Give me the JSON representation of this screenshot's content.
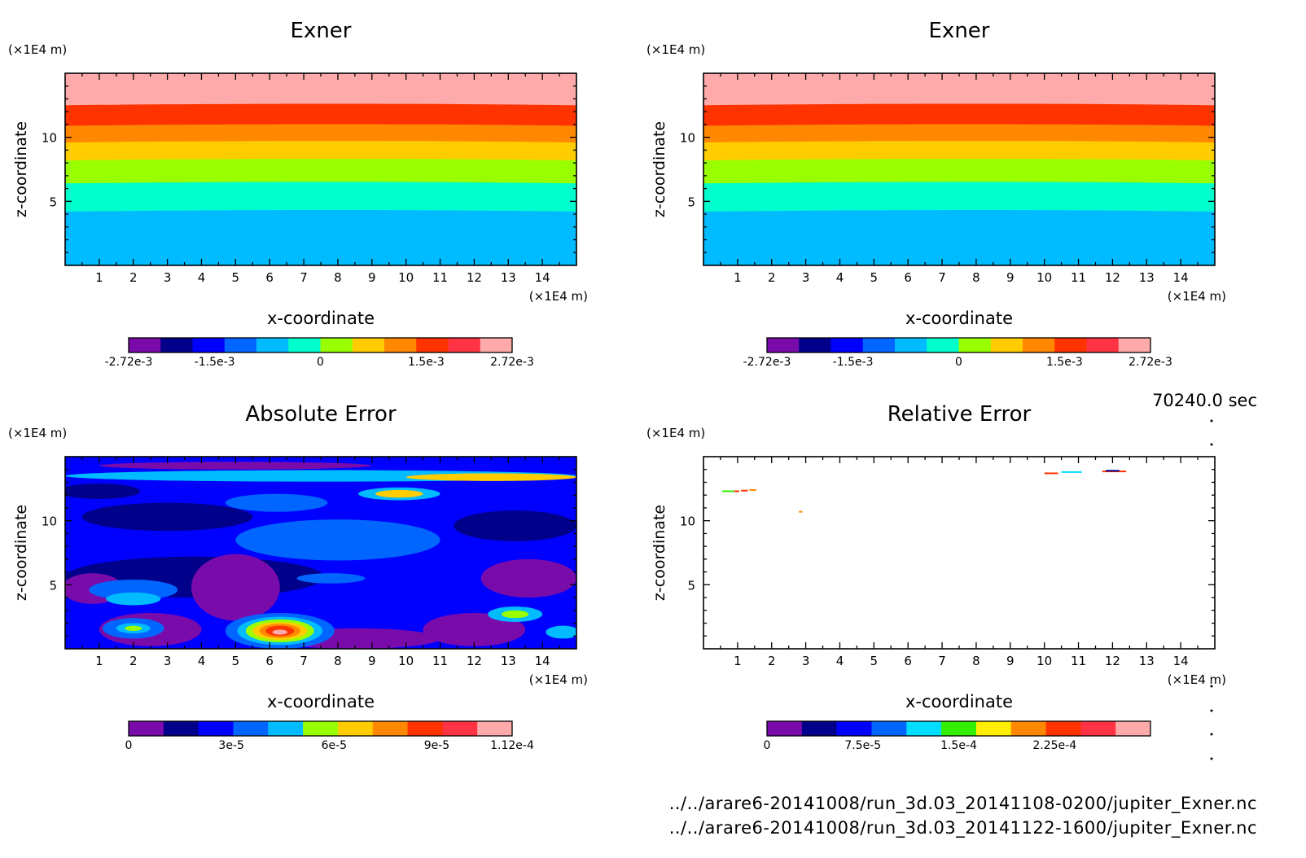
{
  "time_label": "70240.0 sec",
  "files": [
    "../../arare6-20141008/run_3d.03_20141108-0200/jupiter_Exner.nc",
    "../../arare6-20141008/run_3d.03_20141122-1600/jupiter_Exner.nc"
  ],
  "colors": {
    "exner_levels": [
      "#7a0bab",
      "#00008b",
      "#0000ff",
      "#0066ff",
      "#00bbff",
      "#00ffcc",
      "#99ff00",
      "#ffcc00",
      "#ff8800",
      "#ff3300",
      "#ff3344",
      "#ffaaaa"
    ],
    "error_levels": [
      "#7a0bab",
      "#00008b",
      "#0000ff",
      "#0066ff",
      "#00bbff",
      "#99ff00",
      "#ffcc00",
      "#ff8800",
      "#ff3300",
      "#ff3344",
      "#ffaaaa"
    ],
    "rel_levels": [
      "#7a0bab",
      "#00008b",
      "#0000ff",
      "#0066ff",
      "#00ddff",
      "#33ee00",
      "#ffee00",
      "#ff8800",
      "#ff3300",
      "#ff3344",
      "#ffaaaa"
    ]
  },
  "chart_data": [
    {
      "type": "heatmap",
      "title": "Exner",
      "xlabel": "x-coordinate",
      "ylabel": "z-coordinate",
      "x_unit": "(×1E4 m)",
      "z_unit": "(×1E4 m)",
      "xlim": [
        0,
        15
      ],
      "zlim": [
        0,
        15
      ],
      "x_ticks": [
        "1",
        "2",
        "3",
        "4",
        "5",
        "6",
        "7",
        "8",
        "9",
        "10",
        "11",
        "12",
        "13",
        "14"
      ],
      "z_ticks": [
        "5",
        "10"
      ],
      "bands": [
        {
          "z_top": 15,
          "z_bottom": 12.5,
          "color": "#ffaaaa"
        },
        {
          "z_top": 12.5,
          "z_bottom": 10.9,
          "color": "#ff3300"
        },
        {
          "z_top": 10.9,
          "z_bottom": 9.6,
          "color": "#ff8800"
        },
        {
          "z_top": 9.6,
          "z_bottom": 8.2,
          "color": "#ffcc00"
        },
        {
          "z_top": 8.2,
          "z_bottom": 6.4,
          "color": "#99ff00"
        },
        {
          "z_top": 6.4,
          "z_bottom": 4.2,
          "color": "#00ffcc"
        },
        {
          "z_top": 4.2,
          "z_bottom": 0,
          "color": "#00bbff"
        }
      ],
      "colorbar_labels": [
        "-2.72e-3",
        "-1.5e-3",
        "0",
        "1.5e-3",
        "2.72e-3"
      ],
      "colorbar_range": [
        -0.00272,
        0.00272
      ]
    },
    {
      "type": "heatmap",
      "title": "Exner",
      "xlabel": "x-coordinate",
      "ylabel": "z-coordinate",
      "x_unit": "(×1E4 m)",
      "z_unit": "(×1E4 m)",
      "xlim": [
        0,
        15
      ],
      "zlim": [
        0,
        15
      ],
      "x_ticks": [
        "1",
        "2",
        "3",
        "4",
        "5",
        "6",
        "7",
        "8",
        "9",
        "10",
        "11",
        "12",
        "13",
        "14"
      ],
      "z_ticks": [
        "5",
        "10"
      ],
      "bands": [
        {
          "z_top": 15,
          "z_bottom": 12.5,
          "color": "#ffaaaa"
        },
        {
          "z_top": 12.5,
          "z_bottom": 10.9,
          "color": "#ff3300"
        },
        {
          "z_top": 10.9,
          "z_bottom": 9.6,
          "color": "#ff8800"
        },
        {
          "z_top": 9.6,
          "z_bottom": 8.2,
          "color": "#ffcc00"
        },
        {
          "z_top": 8.2,
          "z_bottom": 6.4,
          "color": "#99ff00"
        },
        {
          "z_top": 6.4,
          "z_bottom": 4.2,
          "color": "#00ffcc"
        },
        {
          "z_top": 4.2,
          "z_bottom": 0,
          "color": "#00bbff"
        }
      ],
      "colorbar_labels": [
        "-2.72e-3",
        "-1.5e-3",
        "0",
        "1.5e-3",
        "2.72e-3"
      ],
      "colorbar_range": [
        -0.00272,
        0.00272
      ]
    },
    {
      "type": "heatmap",
      "title": "Absolute Error",
      "xlabel": "x-coordinate",
      "ylabel": "z-coordinate",
      "x_unit": "(×1E4 m)",
      "z_unit": "(×1E4 m)",
      "xlim": [
        0,
        15
      ],
      "zlim": [
        0,
        15
      ],
      "x_ticks": [
        "1",
        "2",
        "3",
        "4",
        "5",
        "6",
        "7",
        "8",
        "9",
        "10",
        "11",
        "12",
        "13",
        "14"
      ],
      "z_ticks": [
        "5",
        "10"
      ],
      "background": "#0000ff",
      "blobs": [
        {
          "x": 7.5,
          "z": 13.5,
          "rx": 7.5,
          "rz": 0.45,
          "color": "#00bbff"
        },
        {
          "x": 5,
          "z": 14.3,
          "rx": 4,
          "rz": 0.3,
          "color": "#7a0bab"
        },
        {
          "x": 12.5,
          "z": 13.4,
          "rx": 2.5,
          "rz": 0.3,
          "color": "#ffcc00"
        },
        {
          "x": 3,
          "z": 10.3,
          "rx": 2.5,
          "rz": 1.1,
          "color": "#00008b"
        },
        {
          "x": 1,
          "z": 12.3,
          "rx": 1.2,
          "rz": 0.6,
          "color": "#00008b"
        },
        {
          "x": 6.2,
          "z": 11.4,
          "rx": 1.5,
          "rz": 0.7,
          "color": "#0066ff"
        },
        {
          "x": 9.8,
          "z": 12.1,
          "rx": 1.2,
          "rz": 0.5,
          "color": "#00bbff"
        },
        {
          "x": 9.8,
          "z": 12.1,
          "rx": 0.7,
          "rz": 0.3,
          "color": "#ffcc00"
        },
        {
          "x": 8,
          "z": 8.5,
          "rx": 3,
          "rz": 1.6,
          "color": "#0066ff"
        },
        {
          "x": 13.2,
          "z": 9.6,
          "rx": 1.8,
          "rz": 1.2,
          "color": "#00008b"
        },
        {
          "x": 3.8,
          "z": 5.6,
          "rx": 3.8,
          "rz": 1.6,
          "color": "#00008b"
        },
        {
          "x": 5,
          "z": 4.8,
          "rx": 1.3,
          "rz": 2.6,
          "color": "#7a0bab"
        },
        {
          "x": 0.8,
          "z": 4.7,
          "rx": 0.9,
          "rz": 1.2,
          "color": "#7a0bab"
        },
        {
          "x": 13.6,
          "z": 5.5,
          "rx": 1.4,
          "rz": 1.5,
          "color": "#7a0bab"
        },
        {
          "x": 2,
          "z": 4.6,
          "rx": 1.3,
          "rz": 0.8,
          "color": "#0066ff"
        },
        {
          "x": 2,
          "z": 3.9,
          "rx": 0.8,
          "rz": 0.5,
          "color": "#00bbff"
        },
        {
          "x": 7.8,
          "z": 5.5,
          "rx": 1,
          "rz": 0.4,
          "color": "#0066ff"
        },
        {
          "x": 2.5,
          "z": 1.5,
          "rx": 1.5,
          "rz": 1.3,
          "color": "#7a0bab"
        },
        {
          "x": 2,
          "z": 1.6,
          "rx": 0.9,
          "rz": 0.8,
          "color": "#0066ff"
        },
        {
          "x": 2,
          "z": 1.6,
          "rx": 0.5,
          "rz": 0.4,
          "color": "#00bbff"
        },
        {
          "x": 2,
          "z": 1.6,
          "rx": 0.25,
          "rz": 0.2,
          "color": "#99ff00"
        },
        {
          "x": 8.5,
          "z": 0.8,
          "rx": 2.5,
          "rz": 0.8,
          "color": "#7a0bab"
        },
        {
          "x": 12,
          "z": 1.5,
          "rx": 1.5,
          "rz": 1.3,
          "color": "#7a0bab"
        },
        {
          "x": 13.2,
          "z": 2.7,
          "rx": 0.8,
          "rz": 0.6,
          "color": "#00bbff"
        },
        {
          "x": 13.2,
          "z": 2.7,
          "rx": 0.4,
          "rz": 0.3,
          "color": "#99ff00"
        },
        {
          "x": 14.6,
          "z": 1.3,
          "rx": 0.5,
          "rz": 0.5,
          "color": "#00bbff"
        },
        {
          "x": 6.3,
          "z": 1.4,
          "rx": 1.6,
          "rz": 1.4,
          "color": "#0066ff"
        },
        {
          "x": 6.3,
          "z": 1.4,
          "rx": 1.25,
          "rz": 1.1,
          "color": "#00bbff"
        },
        {
          "x": 6.3,
          "z": 1.4,
          "rx": 1.0,
          "rz": 0.9,
          "color": "#99ff00"
        },
        {
          "x": 6.3,
          "z": 1.4,
          "rx": 0.8,
          "rz": 0.7,
          "color": "#ffcc00"
        },
        {
          "x": 6.3,
          "z": 1.4,
          "rx": 0.6,
          "rz": 0.55,
          "color": "#ff8800"
        },
        {
          "x": 6.3,
          "z": 1.4,
          "rx": 0.42,
          "rz": 0.4,
          "color": "#ff3300"
        },
        {
          "x": 6.3,
          "z": 1.3,
          "rx": 0.22,
          "rz": 0.2,
          "color": "#ffaaaa"
        }
      ],
      "colorbar_labels": [
        "0",
        "3e-5",
        "6e-5",
        "9e-5",
        "1.12e-4"
      ],
      "colorbar_range": [
        0,
        0.000112
      ]
    },
    {
      "type": "heatmap",
      "title": "Relative Error",
      "xlabel": "x-coordinate",
      "ylabel": "z-coordinate",
      "x_unit": "(×1E4 m)",
      "z_unit": "(×1E4 m)",
      "xlim": [
        0,
        15
      ],
      "zlim": [
        0,
        15
      ],
      "x_ticks": [
        "1",
        "2",
        "3",
        "4",
        "5",
        "6",
        "7",
        "8",
        "9",
        "10",
        "11",
        "12",
        "13",
        "14"
      ],
      "z_ticks": [
        "5",
        "10"
      ],
      "background": "#ffffff",
      "specks": [
        {
          "x": 0.55,
          "z": 12.3,
          "w": 0.4,
          "color": "#33ee00"
        },
        {
          "x": 0.9,
          "z": 12.3,
          "w": 0.15,
          "color": "#ff3300"
        },
        {
          "x": 1.1,
          "z": 12.35,
          "w": 0.2,
          "color": "#ff3300"
        },
        {
          "x": 1.35,
          "z": 12.4,
          "w": 0.2,
          "color": "#ff8800"
        },
        {
          "x": 2.8,
          "z": 10.7,
          "w": 0.1,
          "color": "#ff8800"
        },
        {
          "x": 10.0,
          "z": 13.7,
          "w": 0.4,
          "color": "#ff3300"
        },
        {
          "x": 10.5,
          "z": 13.8,
          "w": 0.6,
          "color": "#00ddff"
        },
        {
          "x": 11.7,
          "z": 13.85,
          "w": 0.7,
          "color": "#ff3300"
        },
        {
          "x": 11.8,
          "z": 13.9,
          "w": 0.4,
          "color": "#00008b"
        }
      ],
      "colorbar_labels": [
        "0",
        "7.5e-5",
        "1.5e-4",
        "2.25e-4"
      ],
      "colorbar_range": [
        0,
        0.0003
      ]
    }
  ]
}
